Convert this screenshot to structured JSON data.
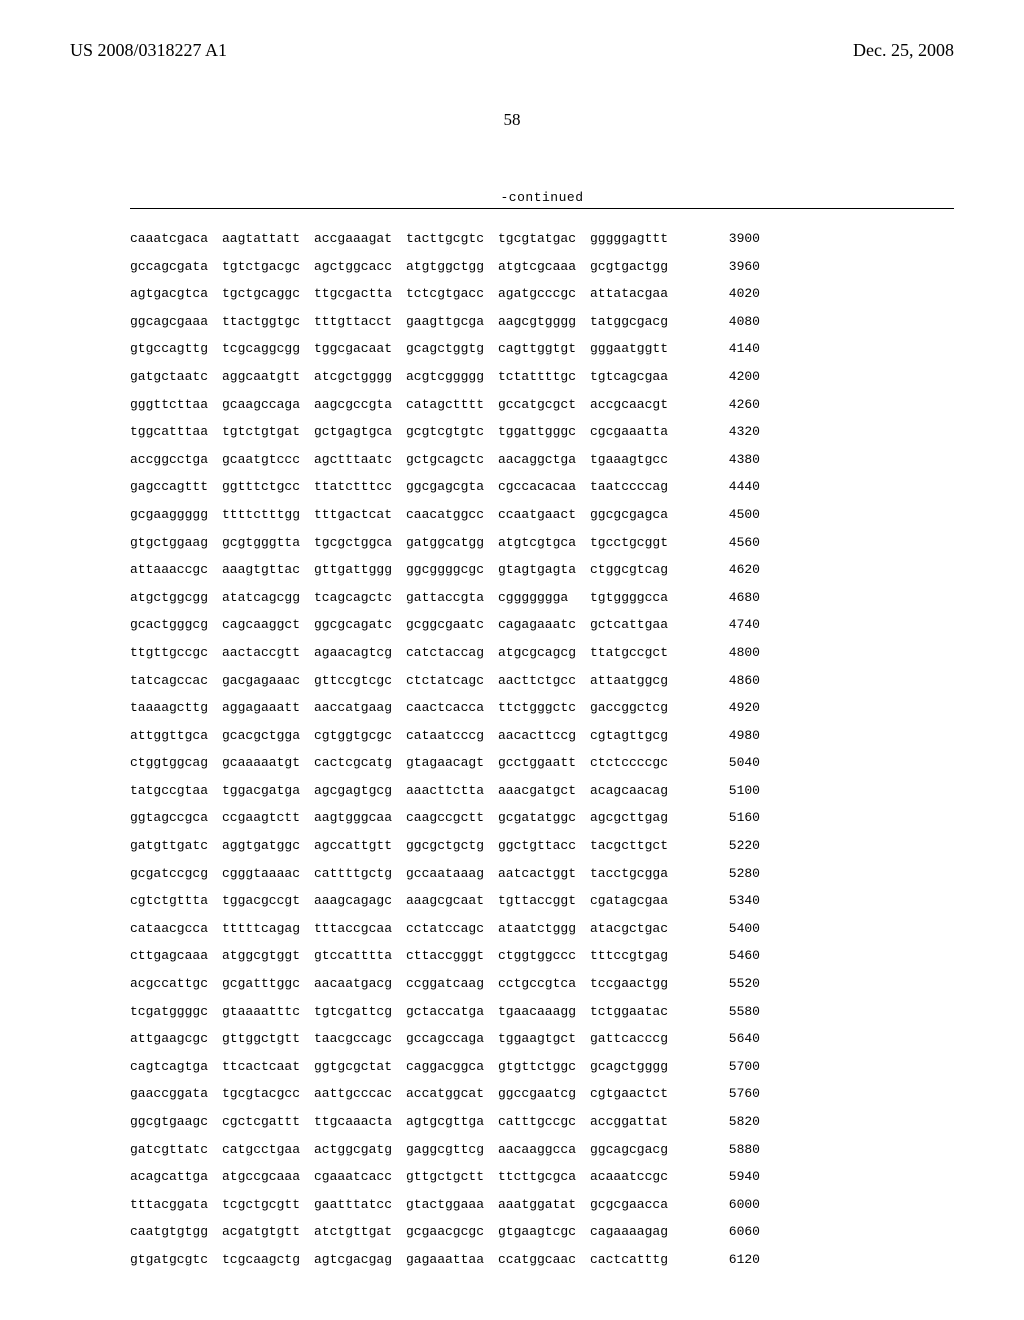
{
  "header": {
    "pub_number": "US 2008/0318227 A1",
    "date": "Dec. 25, 2008",
    "page_number": "58"
  },
  "continued_label": "-continued",
  "sequence": {
    "rows": [
      {
        "groups": [
          "caaatcgaca",
          "aagtattatt",
          "accgaaagat",
          "tacttgcgtc",
          "tgcgtatgac",
          "gggggagttt"
        ],
        "pos": 3900
      },
      {
        "groups": [
          "gccagcgata",
          "tgtctgacgc",
          "agctggcacc",
          "atgtggctgg",
          "atgtcgcaaa",
          "gcgtgactgg"
        ],
        "pos": 3960
      },
      {
        "groups": [
          "agtgacgtca",
          "tgctgcaggc",
          "ttgcgactta",
          "tctcgtgacc",
          "agatgcccgc",
          "attatacgaa"
        ],
        "pos": 4020
      },
      {
        "groups": [
          "ggcagcgaaa",
          "ttactggtgc",
          "tttgttacct",
          "gaagttgcga",
          "aagcgtgggg",
          "tatggcgacg"
        ],
        "pos": 4080
      },
      {
        "groups": [
          "gtgccagttg",
          "tcgcaggcgg",
          "tggcgacaat",
          "gcagctggtg",
          "cagttggtgt",
          "gggaatggtt"
        ],
        "pos": 4140
      },
      {
        "groups": [
          "gatgctaatc",
          "aggcaatgtt",
          "atcgctgggg",
          "acgtcggggg",
          "tctattttgc",
          "tgtcagcgaa"
        ],
        "pos": 4200
      },
      {
        "groups": [
          "gggttcttaa",
          "gcaagccaga",
          "aagcgccgta",
          "catagctttt",
          "gccatgcgct",
          "accgcaacgt"
        ],
        "pos": 4260
      },
      {
        "groups": [
          "tggcatttaa",
          "tgtctgtgat",
          "gctgagtgca",
          "gcgtcgtgtc",
          "tggattgggc",
          "cgcgaaatta"
        ],
        "pos": 4320
      },
      {
        "groups": [
          "accggcctga",
          "gcaatgtccc",
          "agctttaatc",
          "gctgcagctc",
          "aacaggctga",
          "tgaaagtgcc"
        ],
        "pos": 4380
      },
      {
        "groups": [
          "gagccagttt",
          "ggtttctgcc",
          "ttatctttcc",
          "ggcgagcgta",
          "cgccacacaa",
          "taatccccag"
        ],
        "pos": 4440
      },
      {
        "groups": [
          "gcgaaggggg",
          "ttttctttgg",
          "tttgactcat",
          "caacatggcc",
          "ccaatgaact",
          "ggcgcgagca"
        ],
        "pos": 4500
      },
      {
        "groups": [
          "gtgctggaag",
          "gcgtgggtta",
          "tgcgctggca",
          "gatggcatgg",
          "atgtcgtgca",
          "tgcctgcggt"
        ],
        "pos": 4560
      },
      {
        "groups": [
          "attaaaccgc",
          "aaagtgttac",
          "gttgattggg",
          "ggcggggcgc",
          "gtagtgagta",
          "ctggcgtcag"
        ],
        "pos": 4620
      },
      {
        "groups": [
          "atgctggcgg",
          "atatcagcgg",
          "tcagcagctc",
          "gattaccgta",
          "cggggggga",
          "tgtggggcca"
        ],
        "pos": 4680
      },
      {
        "groups": [
          "gcactgggcg",
          "cagcaaggct",
          "ggcgcagatc",
          "gcggcgaatc",
          "cagagaaatc",
          "gctcattgaa"
        ],
        "pos": 4740
      },
      {
        "groups": [
          "ttgttgccgc",
          "aactaccgtt",
          "agaacagtcg",
          "catctaccag",
          "atgcgcagcg",
          "ttatgccgct"
        ],
        "pos": 4800
      },
      {
        "groups": [
          "tatcagccac",
          "gacgagaaac",
          "gttccgtcgc",
          "ctctatcagc",
          "aacttctgcc",
          "attaatggcg"
        ],
        "pos": 4860
      },
      {
        "groups": [
          "taaaagcttg",
          "aggagaaatt",
          "aaccatgaag",
          "caactcacca",
          "ttctgggctc",
          "gaccggctcg"
        ],
        "pos": 4920
      },
      {
        "groups": [
          "attggttgca",
          "gcacgctgga",
          "cgtggtgcgc",
          "cataatcccg",
          "aacacttccg",
          "cgtagttgcg"
        ],
        "pos": 4980
      },
      {
        "groups": [
          "ctggtggcag",
          "gcaaaaatgt",
          "cactcgcatg",
          "gtagaacagt",
          "gcctggaatt",
          "ctctccccgc"
        ],
        "pos": 5040
      },
      {
        "groups": [
          "tatgccgtaa",
          "tggacgatga",
          "agcgagtgcg",
          "aaacttctta",
          "aaacgatgct",
          "acagcaacag"
        ],
        "pos": 5100
      },
      {
        "groups": [
          "ggtagccgca",
          "ccgaagtctt",
          "aagtgggcaa",
          "caagccgctt",
          "gcgatatggc",
          "agcgcttgag"
        ],
        "pos": 5160
      },
      {
        "groups": [
          "gatgttgatc",
          "aggtgatggc",
          "agccattgtt",
          "ggcgctgctg",
          "ggctgttacc",
          "tacgcttgct"
        ],
        "pos": 5220
      },
      {
        "groups": [
          "gcgatccgcg",
          "cgggtaaaac",
          "cattttgctg",
          "gccaataaag",
          "aatcactggt",
          "tacctgcgga"
        ],
        "pos": 5280
      },
      {
        "groups": [
          "cgtctgttta",
          "tggacgccgt",
          "aaagcagagc",
          "aaagcgcaat",
          "tgttaccggt",
          "cgatagcgaa"
        ],
        "pos": 5340
      },
      {
        "groups": [
          "cataacgcca",
          "tttttcagag",
          "tttaccgcaa",
          "cctatccagc",
          "ataatctggg",
          "atacgctgac"
        ],
        "pos": 5400
      },
      {
        "groups": [
          "cttgagcaaa",
          "atggcgtggt",
          "gtccatttta",
          "cttaccgggt",
          "ctggtggccc",
          "tttccgtgag"
        ],
        "pos": 5460
      },
      {
        "groups": [
          "acgccattgc",
          "gcgatttggc",
          "aacaatgacg",
          "ccggatcaag",
          "cctgccgtca",
          "tccgaactgg"
        ],
        "pos": 5520
      },
      {
        "groups": [
          "tcgatggggc",
          "gtaaaatttc",
          "tgtcgattcg",
          "gctaccatga",
          "tgaacaaagg",
          "tctggaatac"
        ],
        "pos": 5580
      },
      {
        "groups": [
          "attgaagcgc",
          "gttggctgtt",
          "taacgccagc",
          "gccagccaga",
          "tggaagtgct",
          "gattcacccg"
        ],
        "pos": 5640
      },
      {
        "groups": [
          "cagtcagtga",
          "ttcactcaat",
          "ggtgcgctat",
          "caggacggca",
          "gtgttctggc",
          "gcagctgggg"
        ],
        "pos": 5700
      },
      {
        "groups": [
          "gaaccggata",
          "tgcgtacgcc",
          "aattgcccac",
          "accatggcat",
          "ggccgaatcg",
          "cgtgaactct"
        ],
        "pos": 5760
      },
      {
        "groups": [
          "ggcgtgaagc",
          "cgctcgattt",
          "ttgcaaacta",
          "agtgcgttga",
          "catttgccgc",
          "accggattat"
        ],
        "pos": 5820
      },
      {
        "groups": [
          "gatcgttatc",
          "catgcctgaa",
          "actggcgatg",
          "gaggcgttcg",
          "aacaaggcca",
          "ggcagcgacg"
        ],
        "pos": 5880
      },
      {
        "groups": [
          "acagcattga",
          "atgccgcaaa",
          "cgaaatcacc",
          "gttgctgctt",
          "ttcttgcgca",
          "acaaatccgc"
        ],
        "pos": 5940
      },
      {
        "groups": [
          "tttacggata",
          "tcgctgcgtt",
          "gaatttatcc",
          "gtactggaaa",
          "aaatggatat",
          "gcgcgaacca"
        ],
        "pos": 6000
      },
      {
        "groups": [
          "caatgtgtgg",
          "acgatgtgtt",
          "atctgttgat",
          "gcgaacgcgc",
          "gtgaagtcgc",
          "cagaaaagag"
        ],
        "pos": 6060
      },
      {
        "groups": [
          "gtgatgcgtc",
          "tcgcaagctg",
          "agtcgacgag",
          "gagaaattaa",
          "ccatggcaac",
          "cactcatttg"
        ],
        "pos": 6120
      }
    ]
  }
}
